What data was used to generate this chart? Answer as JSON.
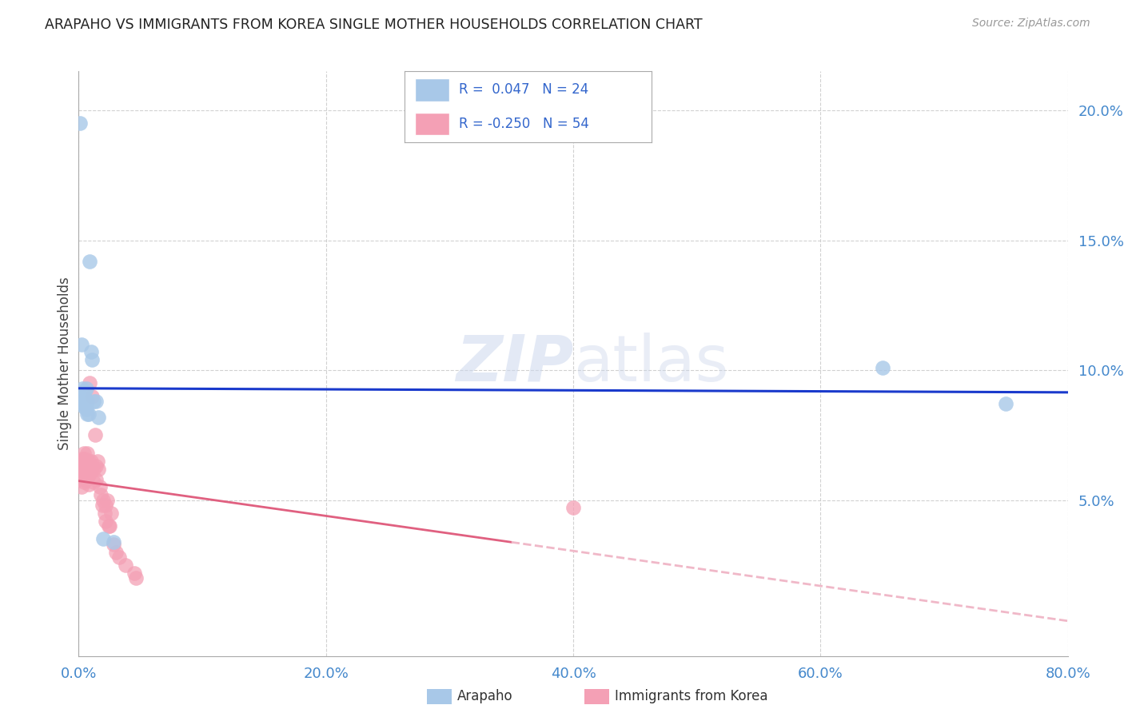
{
  "title": "ARAPAHO VS IMMIGRANTS FROM KOREA SINGLE MOTHER HOUSEHOLDS CORRELATION CHART",
  "source": "Source: ZipAtlas.com",
  "ylabel": "Single Mother Households",
  "x_min": 0.0,
  "x_max": 0.8,
  "y_min": -0.01,
  "y_max": 0.215,
  "arapaho_color": "#a8c8e8",
  "korea_color": "#f4a0b5",
  "arapaho_line_color": "#1a3acc",
  "korea_line_solid_color": "#e06080",
  "korea_line_dashed_color": "#f0b8c8",
  "watermark_zip": "ZIP",
  "watermark_atlas": "atlas",
  "legend_r_arapaho": "R =  0.047",
  "legend_n_arapaho": "N = 24",
  "legend_r_korea": "R = -0.250",
  "legend_n_korea": "N = 54",
  "arapaho_x": [
    0.001,
    0.002,
    0.002,
    0.003,
    0.003,
    0.004,
    0.004,
    0.005,
    0.005,
    0.006,
    0.006,
    0.007,
    0.007,
    0.008,
    0.009,
    0.01,
    0.011,
    0.012,
    0.014,
    0.016,
    0.02,
    0.028,
    0.65,
    0.75
  ],
  "arapaho_y": [
    0.195,
    0.11,
    0.088,
    0.093,
    0.087,
    0.09,
    0.086,
    0.092,
    0.088,
    0.085,
    0.093,
    0.083,
    0.088,
    0.083,
    0.142,
    0.107,
    0.104,
    0.088,
    0.088,
    0.082,
    0.035,
    0.034,
    0.101,
    0.087
  ],
  "korea_x": [
    0.001,
    0.001,
    0.001,
    0.002,
    0.002,
    0.002,
    0.003,
    0.003,
    0.003,
    0.004,
    0.004,
    0.004,
    0.005,
    0.005,
    0.005,
    0.006,
    0.006,
    0.006,
    0.007,
    0.007,
    0.007,
    0.008,
    0.008,
    0.008,
    0.009,
    0.009,
    0.01,
    0.01,
    0.011,
    0.012,
    0.012,
    0.013,
    0.014,
    0.014,
    0.015,
    0.016,
    0.017,
    0.018,
    0.019,
    0.02,
    0.021,
    0.022,
    0.022,
    0.023,
    0.024,
    0.025,
    0.026,
    0.028,
    0.03,
    0.033,
    0.038,
    0.4,
    0.045,
    0.046
  ],
  "korea_y": [
    0.065,
    0.062,
    0.058,
    0.065,
    0.06,
    0.055,
    0.066,
    0.063,
    0.06,
    0.068,
    0.063,
    0.057,
    0.066,
    0.064,
    0.06,
    0.065,
    0.062,
    0.058,
    0.068,
    0.063,
    0.06,
    0.065,
    0.06,
    0.056,
    0.095,
    0.06,
    0.065,
    0.062,
    0.09,
    0.062,
    0.057,
    0.075,
    0.063,
    0.058,
    0.065,
    0.062,
    0.055,
    0.052,
    0.048,
    0.05,
    0.045,
    0.048,
    0.042,
    0.05,
    0.04,
    0.04,
    0.045,
    0.033,
    0.03,
    0.028,
    0.025,
    0.047,
    0.022,
    0.02
  ]
}
